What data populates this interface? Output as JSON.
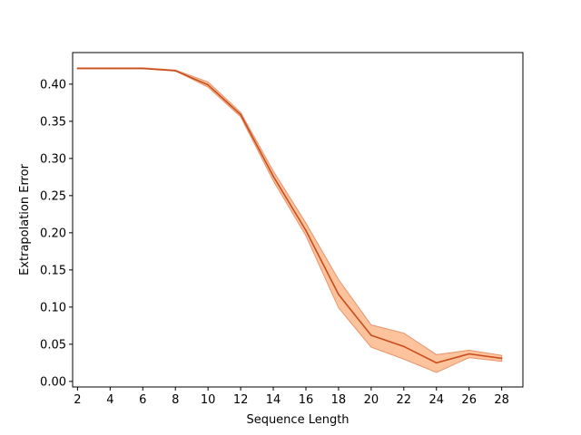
{
  "chart_data": {
    "type": "line",
    "title": "",
    "xlabel": "Sequence Length",
    "ylabel": "Extrapolation Error",
    "xlim": [
      1.7,
      29.3
    ],
    "ylim": [
      -0.0075,
      0.4425
    ],
    "xticks": [
      2,
      4,
      6,
      8,
      10,
      12,
      14,
      16,
      18,
      20,
      22,
      24,
      26,
      28
    ],
    "yticks": [
      0.0,
      0.05,
      0.1,
      0.15,
      0.2,
      0.25,
      0.3,
      0.35,
      0.4
    ],
    "ytick_labels": [
      "0.00",
      "0.05",
      "0.10",
      "0.15",
      "0.20",
      "0.25",
      "0.30",
      "0.35",
      "0.40"
    ],
    "grid": false,
    "legend": "none",
    "series": [
      {
        "line_color": "#c84e1e",
        "band_color": "#fdb98c",
        "x": [
          2,
          4,
          6,
          8,
          10,
          12,
          14,
          16,
          18,
          20,
          22,
          24,
          26,
          28
        ],
        "y": [
          0.421,
          0.421,
          0.421,
          0.418,
          0.399,
          0.359,
          0.276,
          0.203,
          0.117,
          0.062,
          0.047,
          0.025,
          0.037,
          0.031
        ],
        "lower": [
          0.421,
          0.421,
          0.421,
          0.418,
          0.396,
          0.356,
          0.27,
          0.196,
          0.099,
          0.046,
          0.03,
          0.012,
          0.032,
          0.027
        ],
        "upper": [
          0.422,
          0.422,
          0.422,
          0.419,
          0.403,
          0.362,
          0.283,
          0.213,
          0.137,
          0.076,
          0.065,
          0.036,
          0.042,
          0.035
        ]
      }
    ]
  }
}
